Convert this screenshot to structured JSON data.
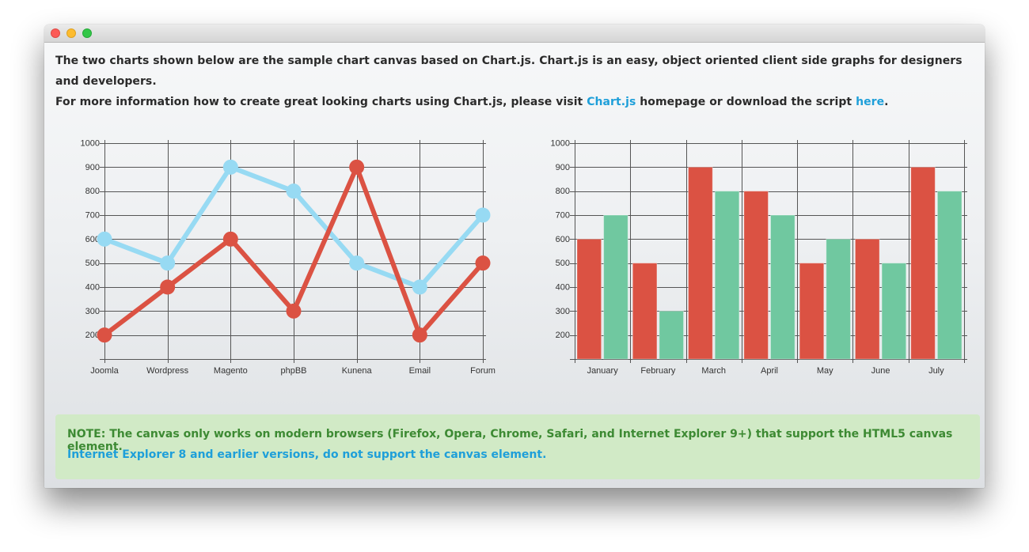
{
  "intro": {
    "line1": "The two charts shown below are the sample chart canvas based on Chart.js. Chart.js is an easy, object oriented client side graphs for designers and developers.",
    "line2_before": "For more information how to create great looking charts using Chart.js, please visit ",
    "link1": "Chart.js",
    "line2_middle": " homepage or download the script ",
    "link2": "here",
    "line2_after": "."
  },
  "note": {
    "line1": "NOTE: The canvas only works on modern browsers (Firefox, Opera, Chrome, Safari, and Internet Explorer 9+) that support the HTML5 canvas element.",
    "line2": "Internet Explorer 8 and earlier versions, do not support the canvas element."
  },
  "colors": {
    "link": "#1e9fd9",
    "red": "#db5243",
    "light_blue": "#97daf3",
    "green": "#70c8a0",
    "note_bg": "#d1eac6",
    "note_text": "#3d8a33",
    "grid": "#555555"
  },
  "chart_data": [
    {
      "type": "line",
      "categories": [
        "Joomla",
        "Wordpress",
        "Magento",
        "phpBB",
        "Kunena",
        "Email",
        "Forum"
      ],
      "series": [
        {
          "color": "#97daf3",
          "values": [
            600,
            500,
            900,
            800,
            500,
            400,
            700
          ]
        },
        {
          "color": "#db5243",
          "values": [
            200,
            400,
            600,
            300,
            900,
            200,
            500
          ]
        }
      ],
      "yticks": [
        200,
        300,
        400,
        500,
        600,
        700,
        800,
        900,
        1000
      ],
      "ylim": [
        100,
        1000
      ],
      "grid": true,
      "title": "",
      "xlabel": "",
      "ylabel": ""
    },
    {
      "type": "bar",
      "categories": [
        "January",
        "February",
        "March",
        "April",
        "May",
        "June",
        "July"
      ],
      "series": [
        {
          "color": "#db5243",
          "values": [
            600,
            500,
            900,
            800,
            500,
            600,
            900
          ]
        },
        {
          "color": "#70c8a0",
          "values": [
            700,
            300,
            800,
            700,
            600,
            500,
            800
          ]
        }
      ],
      "yticks": [
        200,
        300,
        400,
        500,
        600,
        700,
        800,
        900,
        1000
      ],
      "ylim": [
        100,
        1000
      ],
      "grid": true,
      "title": "",
      "xlabel": "",
      "ylabel": ""
    }
  ]
}
